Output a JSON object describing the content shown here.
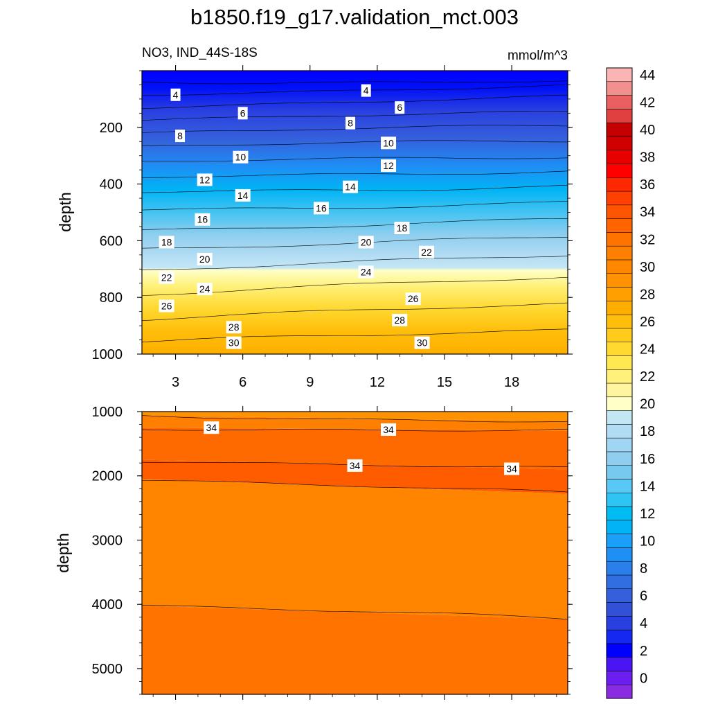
{
  "chart_data": {
    "type": "contour",
    "title": "b1850.f19_g17.validation_mct.003",
    "subtitle_left": "NO3, IND_44S-18S",
    "subtitle_right": "mmol/m^3",
    "xlabel": "",
    "ylabel": "depth",
    "x_ticks": [
      3,
      6,
      9,
      12,
      15,
      18
    ],
    "xlim": [
      1.5,
      20.5
    ],
    "panels": [
      {
        "name": "upper",
        "ylim": [
          0,
          1000
        ],
        "y_ticks": [
          200,
          400,
          600,
          800,
          1000
        ],
        "contour_levels": [
          2,
          4,
          6,
          8,
          10,
          12,
          14,
          16,
          18,
          20,
          22,
          24,
          26,
          28,
          30,
          32
        ],
        "contour_depth_left": [
          40,
          80,
          125,
          170,
          220,
          270,
          325,
          380,
          430,
          490,
          560,
          625,
          700,
          790,
          880,
          960
        ],
        "contour_depth_right": [
          35,
          55,
          95,
          150,
          195,
          245,
          300,
          350,
          405,
          465,
          525,
          590,
          655,
          730,
          820,
          910
        ],
        "contour_labels": [
          {
            "text": "4",
            "x": 3.0,
            "depth": 85
          },
          {
            "text": "4",
            "x": 11.5,
            "depth": 70
          },
          {
            "text": "6",
            "x": 6.0,
            "depth": 150
          },
          {
            "text": "6",
            "x": 13.0,
            "depth": 130
          },
          {
            "text": "8",
            "x": 3.2,
            "depth": 230
          },
          {
            "text": "8",
            "x": 10.8,
            "depth": 185
          },
          {
            "text": "10",
            "x": 5.9,
            "depth": 305
          },
          {
            "text": "10",
            "x": 12.5,
            "depth": 255
          },
          {
            "text": "12",
            "x": 4.3,
            "depth": 385
          },
          {
            "text": "12",
            "x": 12.5,
            "depth": 335
          },
          {
            "text": "14",
            "x": 6.0,
            "depth": 440
          },
          {
            "text": "14",
            "x": 10.8,
            "depth": 410
          },
          {
            "text": "16",
            "x": 4.2,
            "depth": 525
          },
          {
            "text": "16",
            "x": 9.5,
            "depth": 485
          },
          {
            "text": "18",
            "x": 2.6,
            "depth": 605
          },
          {
            "text": "18",
            "x": 13.1,
            "depth": 555
          },
          {
            "text": "20",
            "x": 4.3,
            "depth": 665
          },
          {
            "text": "20",
            "x": 11.5,
            "depth": 605
          },
          {
            "text": "22",
            "x": 2.6,
            "depth": 730
          },
          {
            "text": "22",
            "x": 14.2,
            "depth": 640
          },
          {
            "text": "24",
            "x": 4.3,
            "depth": 770
          },
          {
            "text": "24",
            "x": 11.5,
            "depth": 710
          },
          {
            "text": "26",
            "x": 2.6,
            "depth": 830
          },
          {
            "text": "26",
            "x": 13.6,
            "depth": 805
          },
          {
            "text": "28",
            "x": 5.6,
            "depth": 905
          },
          {
            "text": "28",
            "x": 13.0,
            "depth": 880
          },
          {
            "text": "30",
            "x": 5.6,
            "depth": 960
          },
          {
            "text": "30",
            "x": 14.0,
            "depth": 960
          }
        ]
      },
      {
        "name": "lower",
        "ylim": [
          1000,
          5400
        ],
        "y_ticks": [
          1000,
          2000,
          3000,
          4000,
          5000
        ],
        "contour_levels": [
          32,
          33,
          34,
          35,
          36
        ],
        "contour_depth_left": [
          1060,
          1250,
          1750,
          2050,
          4020
        ],
        "contour_depth_right": [
          1150,
          1300,
          1900,
          2280,
          4230
        ],
        "contour_labels": [
          {
            "text": "34",
            "x": 4.6,
            "depth": 1250
          },
          {
            "text": "34",
            "x": 12.5,
            "depth": 1280
          },
          {
            "text": "34",
            "x": 11.0,
            "depth": 1840
          },
          {
            "text": "34",
            "x": 18.0,
            "depth": 1890
          }
        ]
      }
    ],
    "colorbar": {
      "levels": [
        0,
        2,
        4,
        6,
        8,
        10,
        12,
        14,
        16,
        18,
        20,
        22,
        24,
        26,
        28,
        30,
        32,
        34,
        36,
        38,
        40,
        42,
        44
      ],
      "colors": [
        "#8a2be2",
        "#6a1ff0",
        "#4b14f2",
        "#0000ff",
        "#1428f0",
        "#2a3fe0",
        "#3250d8",
        "#3560dc",
        "#2f6fe2",
        "#2a80ea",
        "#1e8ff5",
        "#1aa0f8",
        "#00b4f5",
        "#00bcf2",
        "#2ec5f5",
        "#5ac8f5",
        "#78c9f0",
        "#8fceef",
        "#a0d6f2",
        "#b1dcf3",
        "#c3e6f5",
        "#ffffc8",
        "#fff5a0",
        "#fff17a",
        "#ffe850",
        "#ffd830",
        "#ffcc1c",
        "#ffbe0a",
        "#ffae00",
        "#ffa000",
        "#ff9200",
        "#ff8800",
        "#ff7f00",
        "#ff7400",
        "#ff6400",
        "#ff5400",
        "#ff4000",
        "#ff2800",
        "#ff0000",
        "#e80000",
        "#d00000",
        "#c40000",
        "#e04040",
        "#e86060",
        "#f29090",
        "#fab4b4"
      ]
    }
  }
}
